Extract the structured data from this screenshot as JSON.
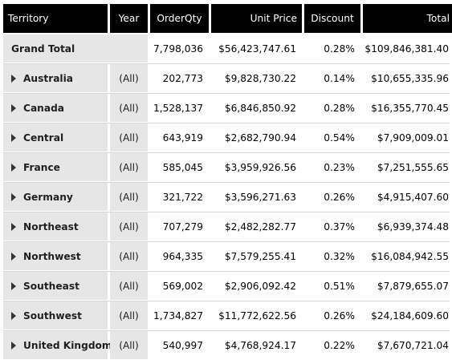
{
  "columns": {
    "territory": "Territory",
    "year": "Year",
    "order_qty": "OrderQty",
    "unit_price": "Unit Price",
    "discount": "Discount",
    "total": "Total"
  },
  "grand_total": {
    "label": "Grand Total",
    "order_qty": "7,798,036",
    "unit_price": "$56,423,747.61",
    "discount": "0.28%",
    "total": "$109,846,381.40"
  },
  "rows": [
    {
      "territory": "Australia",
      "year": "(All)",
      "order_qty": "202,773",
      "unit_price": "$9,828,730.22",
      "discount": "0.14%",
      "total": "$10,655,335.96"
    },
    {
      "territory": "Canada",
      "year": "(All)",
      "order_qty": "1,528,137",
      "unit_price": "$6,846,850.92",
      "discount": "0.28%",
      "total": "$16,355,770.45"
    },
    {
      "territory": "Central",
      "year": "(All)",
      "order_qty": "643,919",
      "unit_price": "$2,682,790.94",
      "discount": "0.54%",
      "total": "$7,909,009.01"
    },
    {
      "territory": "France",
      "year": "(All)",
      "order_qty": "585,045",
      "unit_price": "$3,959,926.56",
      "discount": "0.23%",
      "total": "$7,251,555.65"
    },
    {
      "territory": "Germany",
      "year": "(All)",
      "order_qty": "321,722",
      "unit_price": "$3,596,271.63",
      "discount": "0.26%",
      "total": "$4,915,407.60"
    },
    {
      "territory": "Northeast",
      "year": "(All)",
      "order_qty": "707,279",
      "unit_price": "$2,482,282.77",
      "discount": "0.37%",
      "total": "$6,939,374.48"
    },
    {
      "territory": "Northwest",
      "year": "(All)",
      "order_qty": "964,335",
      "unit_price": "$7,579,255.41",
      "discount": "0.32%",
      "total": "$16,084,942.55"
    },
    {
      "territory": "Southeast",
      "year": "(All)",
      "order_qty": "569,002",
      "unit_price": "$2,906,092.42",
      "discount": "0.51%",
      "total": "$7,879,655.07"
    },
    {
      "territory": "Southwest",
      "year": "(All)",
      "order_qty": "1,734,827",
      "unit_price": "$11,772,622.56",
      "discount": "0.26%",
      "total": "$24,184,609.60"
    },
    {
      "territory": "United Kingdom",
      "year": "(All)",
      "order_qty": "540,997",
      "unit_price": "$4,768,924.17",
      "discount": "0.22%",
      "total": "$7,670,721.04"
    }
  ],
  "icons": {
    "expander": "caret-right-icon"
  },
  "colors": {
    "header_bg": "#000000",
    "header_text": "#ffffff",
    "row_header_bg": "#e6e6e6",
    "cell_bg": "#ffffff"
  }
}
